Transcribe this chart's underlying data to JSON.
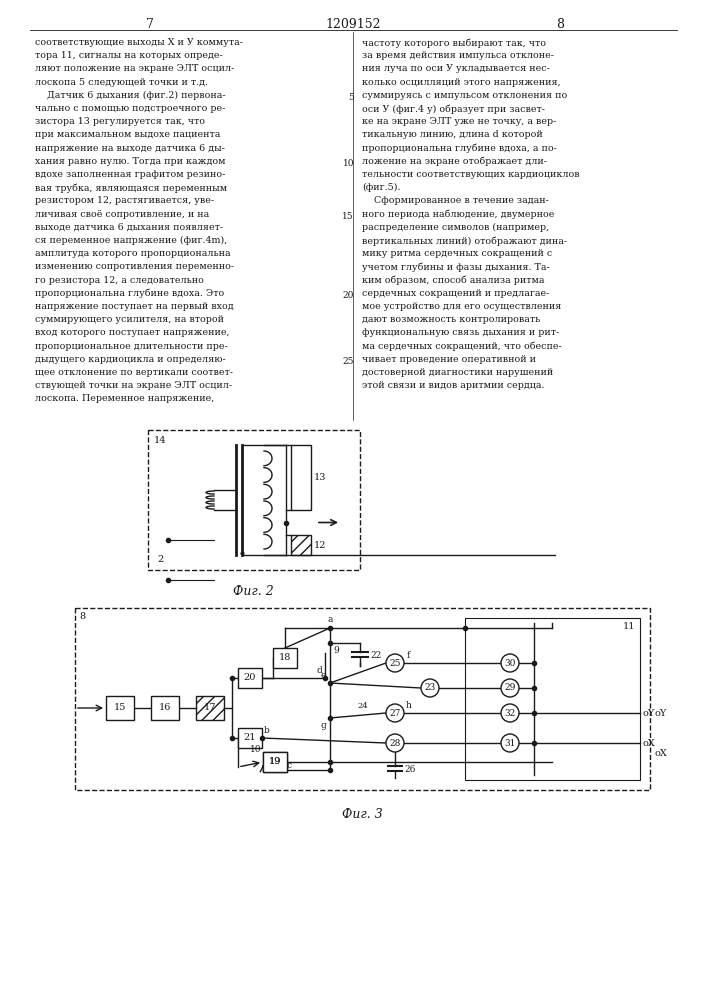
{
  "page_number_left": "7",
  "page_number_center": "1209152",
  "page_number_right": "8",
  "bg_color": "#ffffff",
  "text_color": "#1a1a1a",
  "col1_lines": [
    "соответствующие выходы X и У коммута-",
    "тора 11, сигналы на которых опреде-",
    "ляют положение на экране ЭЛТ осцил-",
    "лоскопа 5 следующей точки и т.д.",
    "    Датчик 6 дыхания (фиг.2) первона-",
    "чально с помощью подстроечного ре-",
    "зистора 13 регулируется так, что",
    "при максимальном выдохе пациента",
    "напряжение на выходе датчика 6 ды-",
    "хания равно нулю. Тогда при каждом",
    "вдохе заполненная графитом резино-",
    "вая трубка, являющаяся переменным",
    "резистором 12, растягивается, уве-",
    "личивая своё сопротивление, и на",
    "выходе датчика 6 дыхания появляет-",
    "ся переменное напряжение (фиг.4m),",
    "амплитуда которого пропорциональна",
    "изменению сопротивления переменно-",
    "го резистора 12, а следовательно",
    "пропорциональна глубине вдоха. Это",
    "напряжение поступает на первый вход",
    "суммирующего усилителя, на второй",
    "вход которого поступает напряжение,",
    "пропорциональное длительности пре-",
    "дыдущего кардиоцикла и определяю-",
    "щее отклонение по вертикали соответ-",
    "ствующей точки на экране ЭЛТ осцил-",
    "лоскопа. Переменное напряжение,"
  ],
  "col2_lines": [
    "частоту которого выбирают так, что",
    "за время действия импульса отклоне-",
    "ния луча по оси У укладывается нес-",
    "колько осцилляций этого напряжения,",
    "суммируясь с импульсом отклонения по",
    "оси У (фиг.4 у) образует при засвет-",
    "ке на экране ЭЛТ уже не точку, а вер-",
    "тикальную линию, длина d которой",
    "пропорциональна глубине вдоха, а по-",
    "ложение на экране отображает дли-",
    "тельности соответствующих кардиоциклов",
    "(фиг.5).",
    "    Сформированное в течение задан-",
    "ного периода наблюдение, двумерное",
    "распределение символов (например,",
    "вертикальных линий) отображают дина-",
    "мику ритма сердечных сокращений с",
    "учетом глубины и фазы дыхания. Та-",
    "ким образом, способ анализа ритма",
    "сердечных сокращений и предлагае-",
    "мое устройство для его осуществления",
    "дают возможность контролировать",
    "функциональную связь дыхания и рит-",
    "ма сердечных сокращений, что обеспе-",
    "чивает проведение оперативной и",
    "достоверной диагностики нарушений",
    "этой связи и видов аритмии сердца."
  ],
  "col2_line_numbers": [
    null,
    null,
    null,
    null,
    "5",
    null,
    null,
    null,
    null,
    "10",
    null,
    null,
    null,
    "15",
    null,
    null,
    null,
    null,
    null,
    "20",
    null,
    null,
    null,
    null,
    "25",
    null,
    null
  ],
  "fig2_caption": "Фиг. 2",
  "fig3_caption": "Фиг. 3"
}
